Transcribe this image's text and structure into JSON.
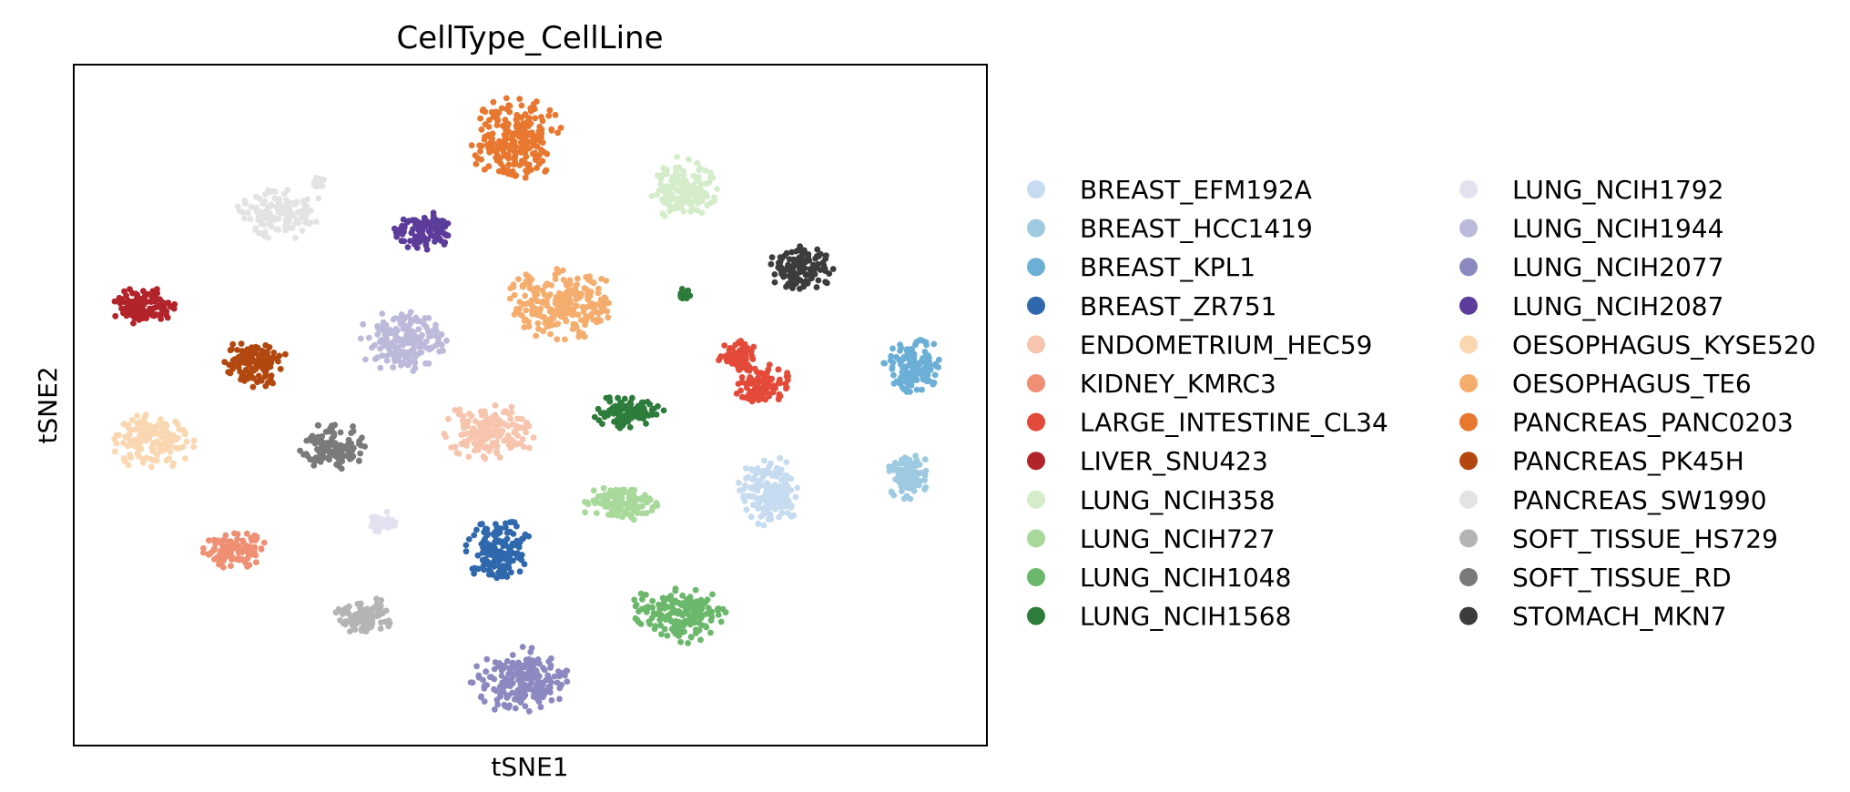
{
  "chart_data": {
    "type": "scatter",
    "title": "CellType_CellLine",
    "xlabel": "tSNE1",
    "ylabel": "tSNE2",
    "ticks": false,
    "grid": false,
    "legend_position": "right",
    "legend_columns": 2,
    "series": [
      {
        "name": "BREAST_EFM192A",
        "color": "#c6dbef"
      },
      {
        "name": "BREAST_HCC1419",
        "color": "#9ecae1"
      },
      {
        "name": "BREAST_KPL1",
        "color": "#6baed6"
      },
      {
        "name": "BREAST_ZR751",
        "color": "#2f68ad"
      },
      {
        "name": "ENDOMETRIUM_HEC59",
        "color": "#f7c4ad"
      },
      {
        "name": "KIDNEY_KMRC3",
        "color": "#ef8f73"
      },
      {
        "name": "LARGE_INTESTINE_CL34",
        "color": "#e34a39"
      },
      {
        "name": "LIVER_SNU423",
        "color": "#b2232a"
      },
      {
        "name": "LUNG_NCIH358",
        "color": "#d4ecc9"
      },
      {
        "name": "LUNG_NCIH727",
        "color": "#a8d99b"
      },
      {
        "name": "LUNG_NCIH1048",
        "color": "#6bb76b"
      },
      {
        "name": "LUNG_NCIH1568",
        "color": "#2d7c3c"
      },
      {
        "name": "LUNG_NCIH1792",
        "color": "#e2e1ef"
      },
      {
        "name": "LUNG_NCIH1944",
        "color": "#bbbada"
      },
      {
        "name": "LUNG_NCIH2077",
        "color": "#8c89c0"
      },
      {
        "name": "LUNG_NCIH2087",
        "color": "#5b3c9a"
      },
      {
        "name": "OESOPHAGUS_KYSE520",
        "color": "#fad7b0"
      },
      {
        "name": "OESOPHAGUS_TE6",
        "color": "#f5ad6e"
      },
      {
        "name": "PANCREAS_PANC0203",
        "color": "#e8772f"
      },
      {
        "name": "PANCREAS_PK45H",
        "color": "#b2480f"
      },
      {
        "name": "PANCREAS_SW1990",
        "color": "#e3e3e3"
      },
      {
        "name": "SOFT_TISSUE_HS729",
        "color": "#b4b4b4"
      },
      {
        "name": "SOFT_TISSUE_RD",
        "color": "#7a7a7a"
      },
      {
        "name": "STOMACH_MKN7",
        "color": "#3c3c3c"
      }
    ]
  }
}
